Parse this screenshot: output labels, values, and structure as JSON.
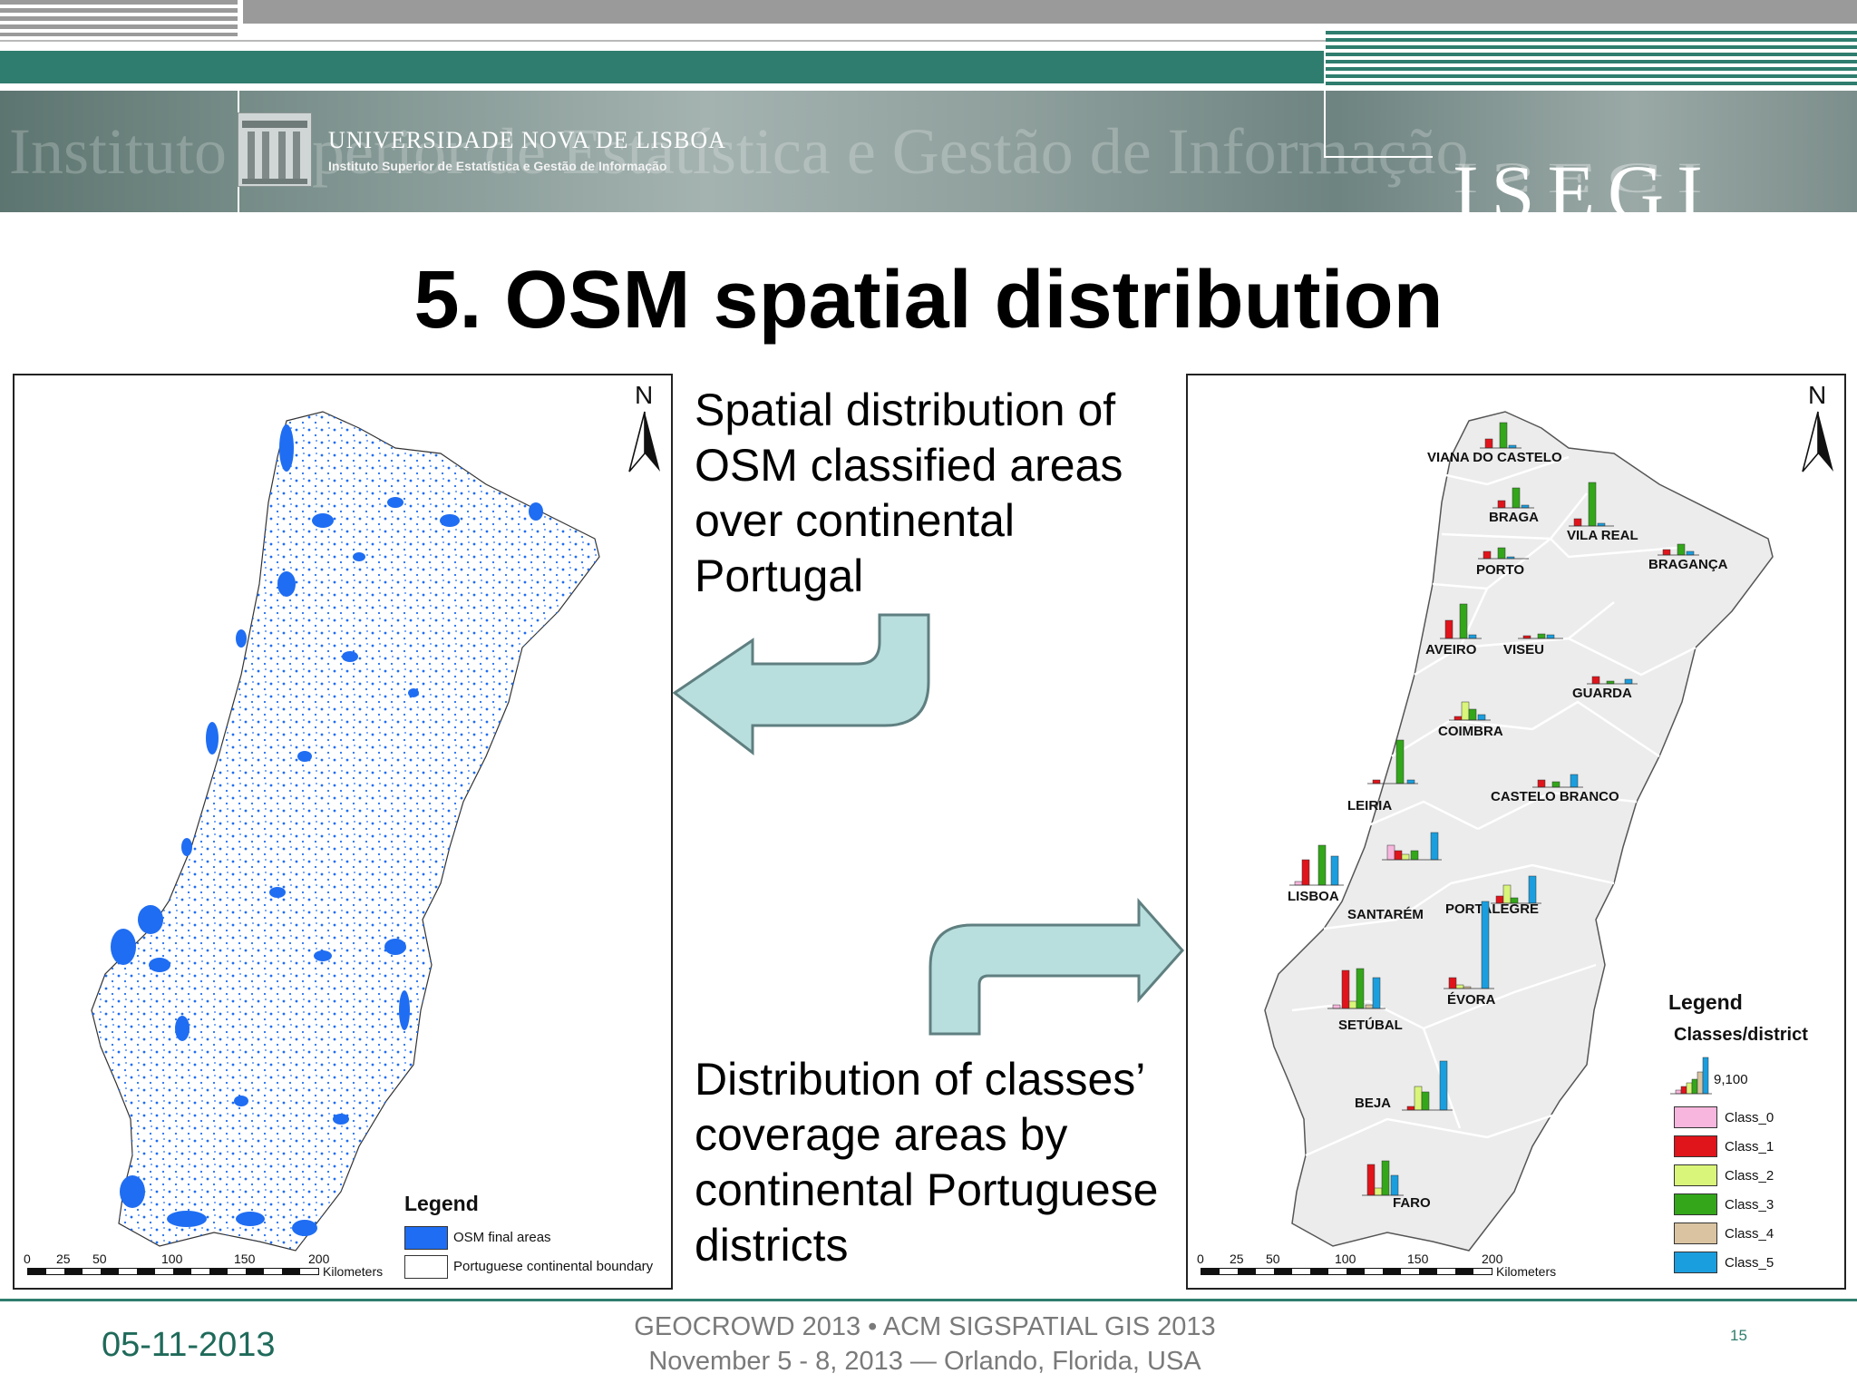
{
  "header": {
    "university": "UNIVERSIDADE NOVA DE LISBOA",
    "institute": "Instituto Superior de Estatística e Gestão de Informação",
    "background_text": "Instituto Superior de Estatística e Gestão de Informação",
    "logo": "ISEGI"
  },
  "title": "5. OSM spatial distribution",
  "left_map": {
    "north": "N",
    "legend_title": "Legend",
    "legend_items": [
      "OSM final areas",
      "Portuguese continental boundary"
    ],
    "scale_ticks": [
      "0",
      "25",
      "50",
      "100",
      "150",
      "200"
    ],
    "scale_unit": "Kilometers"
  },
  "description_top": "Spatial distribution of OSM classified areas over continental Portugal",
  "description_bottom": "Distribution of classes’ coverage areas by continental Portuguese districts",
  "right_map": {
    "north": "N",
    "districts": [
      "VIANA DO CASTELO",
      "BRAGA",
      "VILA REAL",
      "BRAGANÇA",
      "PORTO",
      "AVEIRO",
      "VISEU",
      "GUARDA",
      "COIMBRA",
      "CASTELO BRANCO",
      "LEIRIA",
      "LISBOA",
      "SANTARÉM",
      "PORTALEGRE",
      "ÉVORA",
      "SETÚBAL",
      "BEJA",
      "FARO"
    ],
    "legend_title": "Legend",
    "legend_subtitle": "Classes/district",
    "legend_max": "9,100",
    "legend_classes": [
      "Class_0",
      "Class_1",
      "Class_2",
      "Class_3",
      "Class_4",
      "Class_5"
    ],
    "scale_ticks": [
      "0",
      "25",
      "50",
      "100",
      "150",
      "200"
    ],
    "scale_unit": "Kilometers"
  },
  "class_colors": [
    "#f7b6dd",
    "#e0141b",
    "#d9f57a",
    "#33a61a",
    "#d9c3a0",
    "#1a9ede"
  ],
  "osm_area_color": "#1f6df2",
  "district_fill_color": "#ececec",
  "footer": {
    "date": "05-11-2013",
    "conference_line1": "GEOCROWD 2013 • ACM SIGSPATIAL GIS 2013",
    "conference_line2": "November 5 - 8, 2013 — Orlando, Florida, USA",
    "page": "15"
  }
}
